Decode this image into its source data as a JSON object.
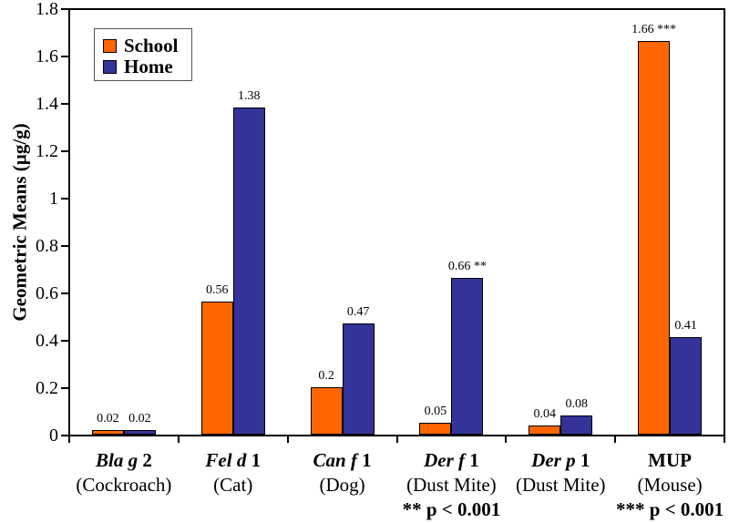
{
  "chart_data": {
    "type": "bar",
    "title": "",
    "xlabel": "",
    "ylabel": "Geometric Means (µg/g)",
    "ylim": [
      0,
      1.8
    ],
    "yticks": [
      0,
      0.2,
      0.4,
      0.6,
      0.8,
      1,
      1.2,
      1.4,
      1.6,
      1.8
    ],
    "ytick_labels": [
      "0",
      "0.2",
      "0.4",
      "0.6",
      "0.8",
      "1",
      "1.2",
      "1.4",
      "1.6",
      "1.8"
    ],
    "grid": false,
    "legend_position": "top-left",
    "categories": [
      {
        "sci_italic": "Bla g",
        "sci_plain": "2",
        "common": "(Cockroach)",
        "note": ""
      },
      {
        "sci_italic": "Fel d",
        "sci_plain": "1",
        "common": "(Cat)",
        "note": ""
      },
      {
        "sci_italic": "Can f",
        "sci_plain": "1",
        "common": "(Dog)",
        "note": ""
      },
      {
        "sci_italic": "Der f",
        "sci_plain": "1",
        "common": "(Dust Mite)",
        "note": "** p < 0.001"
      },
      {
        "sci_italic": "Der p",
        "sci_plain": "1",
        "common": "(Dust Mite)",
        "note": ""
      },
      {
        "sci_italic": "",
        "sci_plain": "MUP",
        "common": "(Mouse)",
        "note": "*** p < 0.001"
      }
    ],
    "series": [
      {
        "name": "School",
        "color": "#FF6600",
        "values": [
          0.02,
          0.56,
          0.2,
          0.05,
          0.04,
          1.66
        ],
        "bar_labels": [
          "0.02",
          "0.56",
          "0.2",
          "0.05",
          "0.04",
          "1.66 ***"
        ]
      },
      {
        "name": "Home",
        "color": "#333399",
        "values": [
          0.02,
          1.38,
          0.47,
          0.66,
          0.08,
          0.41
        ],
        "bar_labels": [
          "0.02",
          "1.38",
          "0.47",
          "0.66 **",
          "0.08",
          "0.41"
        ]
      }
    ]
  },
  "colors": {
    "school": "#FF6600",
    "home": "#333399",
    "axis": "#000000",
    "background": "#FFFFFF"
  }
}
